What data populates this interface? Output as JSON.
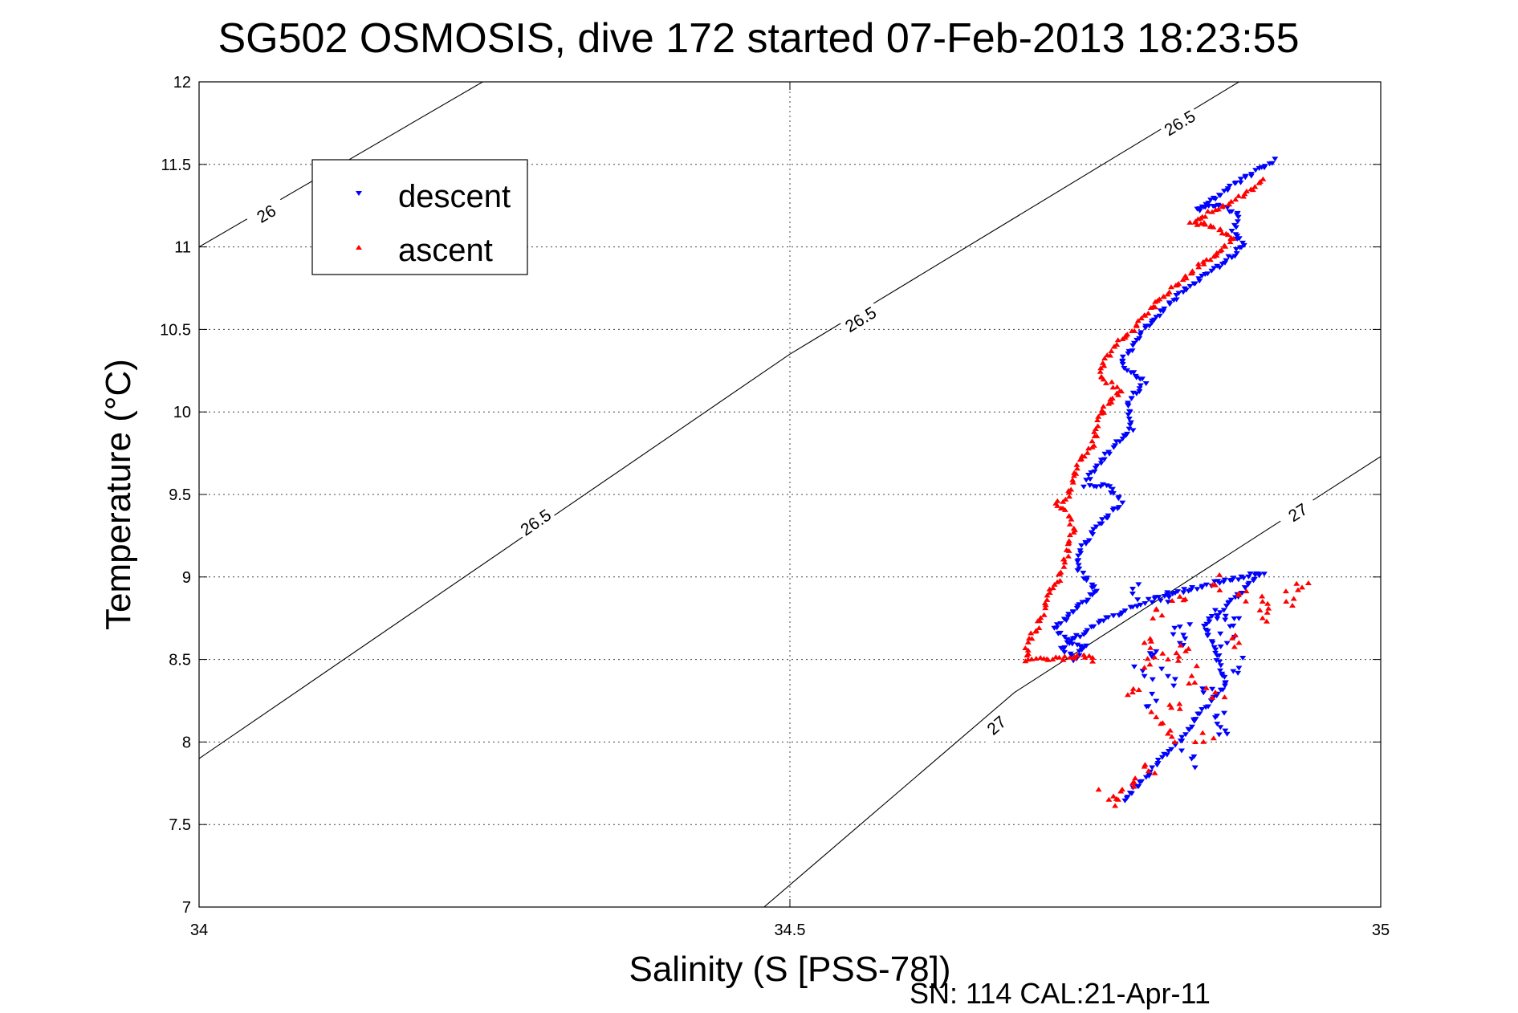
{
  "chart_data": {
    "type": "scatter",
    "title": "SG502 OSMOSIS, dive 172 started 07-Feb-2013 18:23:55",
    "xlabel": "Salinity (S [PSS-78])",
    "ylabel": "Temperature (°C)",
    "xlim": [
      34,
      35
    ],
    "ylim": [
      7,
      12
    ],
    "x_ticks": [
      "34",
      "34.5",
      "35"
    ],
    "y_ticks": [
      "7",
      "7.5",
      "8",
      "8.5",
      "9",
      "9.5",
      "10",
      "10.5",
      "11",
      "11.5",
      "12"
    ],
    "grid": true,
    "legend_placement": "upper-left",
    "footer": "SN: 114  CAL:21-Apr-11",
    "density_contours": [
      {
        "label": "26",
        "points": [
          [
            34.0,
            11.0
          ],
          [
            34.24,
            12.0
          ]
        ],
        "label_positions": [
          [
            34.057,
            11.2
          ]
        ]
      },
      {
        "label": "26.5",
        "points": [
          [
            34.0,
            7.9
          ],
          [
            34.5,
            10.35
          ],
          [
            34.88,
            12.0
          ]
        ],
        "label_positions": [
          [
            34.285,
            9.33
          ],
          [
            34.56,
            10.56
          ],
          [
            34.83,
            11.75
          ]
        ]
      },
      {
        "label": "27",
        "points": [
          [
            34.47,
            6.95
          ],
          [
            34.69,
            8.3
          ],
          [
            35.0,
            9.73
          ]
        ],
        "label_positions": [
          [
            34.675,
            8.1
          ],
          [
            34.93,
            9.39
          ]
        ]
      }
    ],
    "series": [
      {
        "name": "descent",
        "color": "#0000ff",
        "marker": "triangle-down",
        "path": [
          [
            34.91,
            11.53
          ],
          [
            34.88,
            11.4
          ],
          [
            34.86,
            11.3
          ],
          [
            34.845,
            11.22
          ],
          [
            34.862,
            11.26
          ],
          [
            34.88,
            11.2
          ],
          [
            34.875,
            11.1
          ],
          [
            34.885,
            11.02
          ],
          [
            34.87,
            10.92
          ],
          [
            34.845,
            10.8
          ],
          [
            34.82,
            10.65
          ],
          [
            34.8,
            10.5
          ],
          [
            34.79,
            10.4
          ],
          [
            34.78,
            10.3
          ],
          [
            34.8,
            10.18
          ],
          [
            34.785,
            10.05
          ],
          [
            34.79,
            9.9
          ],
          [
            34.775,
            9.8
          ],
          [
            34.76,
            9.68
          ],
          [
            34.75,
            9.56
          ],
          [
            34.77,
            9.55
          ],
          [
            34.78,
            9.45
          ],
          [
            34.76,
            9.3
          ],
          [
            34.745,
            9.15
          ],
          [
            34.745,
            9.03
          ],
          [
            34.76,
            8.92
          ],
          [
            34.74,
            8.8
          ],
          [
            34.725,
            8.7
          ],
          [
            34.735,
            8.6
          ],
          [
            34.75,
            8.58
          ],
          [
            34.74,
            8.5
          ],
          [
            34.73,
            8.57
          ],
          [
            34.76,
            8.72
          ],
          [
            34.8,
            8.85
          ],
          [
            34.85,
            8.95
          ],
          [
            34.9,
            9.03
          ],
          [
            34.88,
            8.9
          ],
          [
            34.85,
            8.7
          ],
          [
            34.86,
            8.55
          ],
          [
            34.87,
            8.35
          ],
          [
            34.85,
            8.2
          ],
          [
            34.84,
            8.1
          ],
          [
            34.83,
            8.0
          ],
          [
            34.82,
            7.95
          ],
          [
            34.81,
            7.85
          ],
          [
            34.79,
            7.7
          ],
          [
            34.78,
            7.63
          ]
        ],
        "scatter": [
          [
            34.82,
            8.85
          ],
          [
            34.83,
            8.7
          ],
          [
            34.81,
            8.55
          ],
          [
            34.87,
            8.6
          ],
          [
            34.85,
            8.3
          ],
          [
            34.82,
            8.4
          ],
          [
            34.88,
            8.45
          ],
          [
            34.86,
            8.15
          ],
          [
            34.81,
            8.25
          ],
          [
            34.84,
            7.9
          ],
          [
            34.87,
            8.05
          ],
          [
            34.83,
            8.6
          ],
          [
            34.88,
            8.75
          ],
          [
            34.8,
            8.4
          ],
          [
            34.86,
            8.8
          ],
          [
            34.79,
            8.9
          ]
        ]
      },
      {
        "name": "ascent",
        "color": "#ff0000",
        "marker": "triangle-up",
        "path": [
          [
            34.9,
            11.4
          ],
          [
            34.88,
            11.3
          ],
          [
            34.86,
            11.22
          ],
          [
            34.84,
            11.15
          ],
          [
            34.86,
            11.12
          ],
          [
            34.875,
            11.05
          ],
          [
            34.86,
            10.95
          ],
          [
            34.84,
            10.85
          ],
          [
            34.82,
            10.72
          ],
          [
            34.805,
            10.62
          ],
          [
            34.79,
            10.5
          ],
          [
            34.775,
            10.4
          ],
          [
            34.765,
            10.3
          ],
          [
            34.762,
            10.22
          ],
          [
            34.78,
            10.12
          ],
          [
            34.765,
            10.02
          ],
          [
            34.76,
            9.9
          ],
          [
            34.755,
            9.78
          ],
          [
            34.745,
            9.7
          ],
          [
            34.74,
            9.6
          ],
          [
            34.735,
            9.48
          ],
          [
            34.725,
            9.45
          ],
          [
            34.735,
            9.38
          ],
          [
            34.74,
            9.28
          ],
          [
            34.735,
            9.15
          ],
          [
            34.73,
            9.02
          ],
          [
            34.72,
            8.9
          ],
          [
            34.715,
            8.8
          ],
          [
            34.71,
            8.7
          ],
          [
            34.7,
            8.6
          ],
          [
            34.7,
            8.5
          ],
          [
            34.72,
            8.5
          ],
          [
            34.75,
            8.52
          ],
          [
            34.76,
            8.48
          ]
        ],
        "scatter": [
          [
            34.93,
            8.92
          ],
          [
            34.92,
            8.85
          ],
          [
            34.9,
            8.75
          ],
          [
            34.88,
            8.9
          ],
          [
            34.86,
            8.95
          ],
          [
            34.83,
            8.88
          ],
          [
            34.81,
            8.8
          ],
          [
            34.8,
            8.6
          ],
          [
            34.82,
            8.5
          ],
          [
            34.84,
            8.4
          ],
          [
            34.86,
            8.3
          ],
          [
            34.83,
            8.2
          ],
          [
            34.81,
            8.15
          ],
          [
            34.85,
            8.0
          ],
          [
            34.82,
            8.05
          ],
          [
            34.8,
            7.85
          ],
          [
            34.79,
            7.75
          ],
          [
            34.78,
            7.7
          ],
          [
            34.77,
            7.65
          ],
          [
            34.88,
            8.6
          ],
          [
            34.9,
            8.85
          ],
          [
            34.79,
            8.3
          ],
          [
            34.8,
            8.45
          ],
          [
            34.835,
            8.55
          ]
        ]
      }
    ]
  }
}
